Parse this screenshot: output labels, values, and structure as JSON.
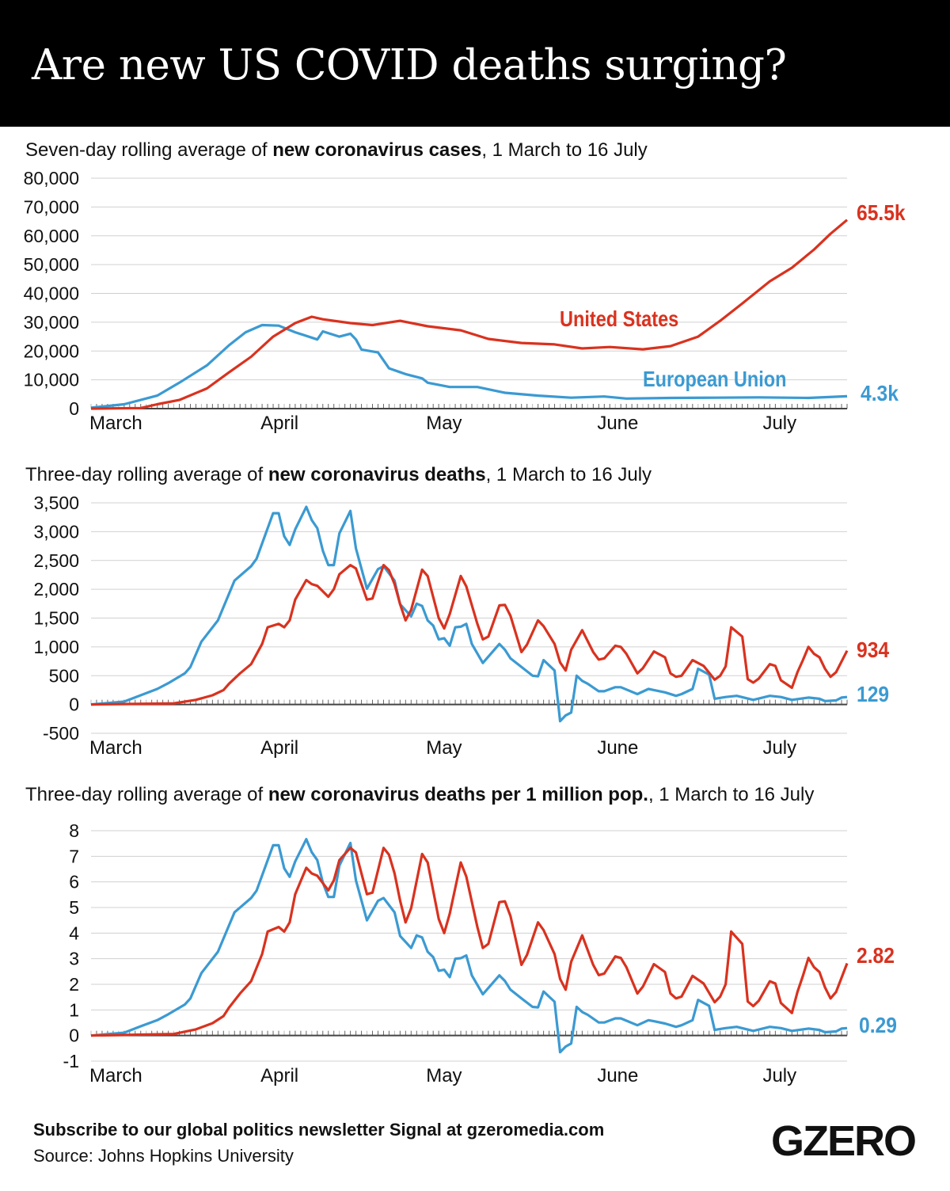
{
  "title": "Are new US COVID deaths surging?",
  "colors": {
    "us": "#d9321f",
    "eu": "#3b9ad2",
    "grid": "#d0d0d0",
    "axis": "#444444"
  },
  "footer": {
    "subscribe": "Subscribe to our global politics newsletter Signal at gzeromedia.com",
    "source": "Source: Johns Hopkins University",
    "logo": "GZERO"
  },
  "chart_data": [
    {
      "type": "line",
      "subtitle_pre": "Seven-day rolling average of ",
      "subtitle_bold": "new coronavirus cases",
      "subtitle_post": ", 1 March to 16 July",
      "x_range": [
        "03-01",
        "07-16"
      ],
      "x_ticks": [
        "March",
        "April",
        "May",
        "June",
        "July"
      ],
      "ylim": [
        0,
        80000
      ],
      "y_ticks": [
        0,
        10000,
        20000,
        30000,
        40000,
        50000,
        60000,
        70000,
        80000
      ],
      "y_tick_labels": [
        "0",
        "10,000",
        "20,000",
        "30,000",
        "40,000",
        "50,000",
        "60,000",
        "70,000",
        "80,000"
      ],
      "grid": true,
      "series": [
        {
          "name": "United States",
          "end_label": "65.5k",
          "color": "#d9321f",
          "dates": [
            "03-01",
            "03-10",
            "03-13",
            "03-17",
            "03-22",
            "03-26",
            "03-30",
            "04-03",
            "04-07",
            "04-10",
            "04-12",
            "04-17",
            "04-21",
            "04-26",
            "05-01",
            "05-07",
            "05-12",
            "05-18",
            "05-24",
            "05-29",
            "06-03",
            "06-09",
            "06-14",
            "06-19",
            "06-23",
            "06-27",
            "07-02",
            "07-06",
            "07-10",
            "07-13",
            "07-16"
          ],
          "values": [
            0,
            200,
            1500,
            3000,
            7000,
            12600,
            18000,
            25000,
            29700,
            31900,
            31000,
            29700,
            29000,
            30500,
            28600,
            27200,
            24200,
            22800,
            22300,
            20900,
            21400,
            20600,
            21700,
            25000,
            30500,
            36500,
            44200,
            48900,
            55200,
            60700,
            65500
          ]
        },
        {
          "name": "European Union",
          "end_label": "4.3k",
          "color": "#3b9ad2",
          "dates": [
            "03-01",
            "03-07",
            "03-13",
            "03-17",
            "03-22",
            "03-26",
            "03-29",
            "04-01",
            "04-04",
            "04-07",
            "04-11",
            "04-12",
            "04-15",
            "04-17",
            "04-18",
            "04-19",
            "04-22",
            "04-24",
            "04-27",
            "04-30",
            "05-01",
            "05-05",
            "05-10",
            "05-15",
            "05-21",
            "05-27",
            "06-02",
            "06-06",
            "06-14",
            "06-22",
            "06-30",
            "07-09",
            "07-16"
          ],
          "values": [
            300,
            1500,
            4500,
            9000,
            15000,
            22000,
            26500,
            29000,
            28800,
            26500,
            24000,
            26800,
            25000,
            26000,
            24000,
            20500,
            19500,
            14000,
            12000,
            10500,
            9000,
            7500,
            7500,
            5500,
            4500,
            3800,
            4200,
            3500,
            3700,
            3800,
            3900,
            3700,
            4300
          ]
        }
      ]
    },
    {
      "type": "line",
      "subtitle_pre": "Three-day rolling average of ",
      "subtitle_bold": "new coronavirus deaths",
      "subtitle_post": ", 1 March to 16 July",
      "x_range": [
        "03-01",
        "07-16"
      ],
      "x_ticks": [
        "March",
        "April",
        "May",
        "June",
        "July"
      ],
      "ylim": [
        -500,
        3500
      ],
      "y_ticks": [
        -500,
        0,
        500,
        1000,
        1500,
        2000,
        2500,
        3000,
        3500
      ],
      "y_tick_labels": [
        "-500",
        "0",
        "500",
        "1,000",
        "1,500",
        "2,000",
        "2,500",
        "3,000",
        "3,500"
      ],
      "grid": true,
      "series": [
        {
          "name": "United States",
          "end_label": "934",
          "color": "#d9321f",
          "dates": [
            "03-01",
            "03-16",
            "03-20",
            "03-23",
            "03-25",
            "03-26",
            "03-28",
            "03-30",
            "04-01",
            "04-02",
            "04-04",
            "04-05",
            "04-06",
            "04-07",
            "04-09",
            "04-10",
            "04-11",
            "04-13",
            "04-14",
            "04-15",
            "04-17",
            "04-18",
            "04-20",
            "04-21",
            "04-23",
            "04-24",
            "04-25",
            "04-26",
            "04-27",
            "04-28",
            "04-30",
            "05-01",
            "05-03",
            "05-04",
            "05-05",
            "05-07",
            "05-08",
            "05-10",
            "05-11",
            "05-12",
            "05-14",
            "05-15",
            "05-16",
            "05-18",
            "05-19",
            "05-21",
            "05-22",
            "05-24",
            "05-25",
            "05-26",
            "05-27",
            "05-29",
            "05-31",
            "06-01",
            "06-02",
            "06-04",
            "06-05",
            "06-06",
            "06-08",
            "06-09",
            "06-11",
            "06-13",
            "06-14",
            "06-15",
            "06-16",
            "06-18",
            "06-20",
            "06-22",
            "06-23",
            "06-24",
            "06-25",
            "06-27",
            "06-28",
            "06-29",
            "06-30",
            "07-02",
            "07-03",
            "07-04",
            "07-06",
            "07-07",
            "07-08",
            "07-09",
            "07-10",
            "07-11",
            "07-12",
            "07-13",
            "07-14",
            "07-16"
          ],
          "values": [
            0,
            20,
            80,
            160,
            250,
            360,
            540,
            700,
            1050,
            1340,
            1400,
            1340,
            1460,
            1820,
            2160,
            2090,
            2060,
            1870,
            2000,
            2260,
            2420,
            2360,
            1820,
            1840,
            2420,
            2330,
            2090,
            1740,
            1460,
            1640,
            2340,
            2230,
            1500,
            1320,
            1570,
            2230,
            2050,
            1400,
            1130,
            1180,
            1720,
            1730,
            1540,
            910,
            1040,
            1460,
            1360,
            1050,
            730,
            590,
            950,
            1290,
            910,
            780,
            800,
            1020,
            1000,
            880,
            540,
            630,
            920,
            820,
            540,
            480,
            500,
            770,
            670,
            430,
            500,
            660,
            1340,
            1180,
            440,
            380,
            450,
            700,
            670,
            420,
            290,
            560,
            770,
            1000,
            880,
            820,
            620,
            480,
            560,
            934
          ]
        },
        {
          "name": "European Union",
          "end_label": "129",
          "color": "#3b9ad2",
          "dates": [
            "03-01",
            "03-07",
            "03-10",
            "03-13",
            "03-15",
            "03-18",
            "03-19",
            "03-21",
            "03-24",
            "03-27",
            "03-30",
            "03-31",
            "04-03",
            "04-04",
            "04-05",
            "04-06",
            "04-07",
            "04-09",
            "04-10",
            "04-11",
            "04-12",
            "04-13",
            "04-14",
            "04-15",
            "04-17",
            "04-18",
            "04-20",
            "04-22",
            "04-23",
            "04-25",
            "04-26",
            "04-28",
            "04-29",
            "04-30",
            "05-01",
            "05-02",
            "05-03",
            "05-04",
            "05-05",
            "05-06",
            "05-07",
            "05-08",
            "05-09",
            "05-11",
            "05-14",
            "05-15",
            "05-16",
            "05-18",
            "05-20",
            "05-21",
            "05-22",
            "05-24",
            "05-25",
            "05-26",
            "05-27",
            "05-28",
            "05-29",
            "05-30",
            "06-01",
            "06-02",
            "06-04",
            "06-05",
            "06-08",
            "06-10",
            "06-11",
            "06-13",
            "06-15",
            "06-16",
            "06-18",
            "06-19",
            "06-21",
            "06-22",
            "06-24",
            "06-26",
            "06-29",
            "07-02",
            "07-04",
            "07-06",
            "07-09",
            "07-11",
            "07-12",
            "07-14",
            "07-15",
            "07-16"
          ],
          "values": [
            0,
            50,
            160,
            270,
            370,
            540,
            650,
            1090,
            1460,
            2150,
            2400,
            2530,
            3320,
            3320,
            2920,
            2770,
            3040,
            3430,
            3200,
            3060,
            2670,
            2420,
            2420,
            2970,
            3360,
            2710,
            2010,
            2350,
            2400,
            2150,
            1740,
            1530,
            1750,
            1710,
            1460,
            1370,
            1130,
            1150,
            1020,
            1340,
            1350,
            1400,
            1050,
            720,
            1050,
            950,
            800,
            650,
            500,
            490,
            770,
            590,
            -290,
            -190,
            -140,
            500,
            410,
            360,
            230,
            230,
            300,
            300,
            180,
            270,
            250,
            210,
            150,
            180,
            270,
            620,
            520,
            100,
            130,
            150,
            80,
            150,
            130,
            80,
            120,
            100,
            60,
            70,
            120,
            129
          ]
        }
      ]
    },
    {
      "type": "line",
      "subtitle_pre": "Three-day rolling average of ",
      "subtitle_bold": "new coronavirus deaths per 1 million pop.",
      "subtitle_post": ", 1 March to 16 July",
      "x_range": [
        "03-01",
        "07-16"
      ],
      "x_ticks": [
        "March",
        "April",
        "May",
        "June",
        "July"
      ],
      "ylim": [
        -1,
        8
      ],
      "y_ticks": [
        -1,
        0,
        1,
        2,
        3,
        4,
        5,
        6,
        7,
        8
      ],
      "y_tick_labels": [
        "-1",
        "0",
        "1",
        "2",
        "3",
        "4",
        "5",
        "6",
        "7",
        "8"
      ],
      "grid": true,
      "series": [
        {
          "name": "United States",
          "end_label": "2.82",
          "color": "#d9321f",
          "dates": [
            "03-01",
            "03-16",
            "03-20",
            "03-23",
            "03-25",
            "03-26",
            "03-28",
            "03-30",
            "04-01",
            "04-02",
            "04-04",
            "04-05",
            "04-06",
            "04-07",
            "04-09",
            "04-10",
            "04-11",
            "04-13",
            "04-14",
            "04-15",
            "04-17",
            "04-18",
            "04-20",
            "04-21",
            "04-23",
            "04-24",
            "04-25",
            "04-26",
            "04-27",
            "04-28",
            "04-30",
            "05-01",
            "05-03",
            "05-04",
            "05-05",
            "05-07",
            "05-08",
            "05-10",
            "05-11",
            "05-12",
            "05-14",
            "05-15",
            "05-16",
            "05-18",
            "05-19",
            "05-21",
            "05-22",
            "05-24",
            "05-25",
            "05-26",
            "05-27",
            "05-29",
            "05-31",
            "06-01",
            "06-02",
            "06-04",
            "06-05",
            "06-06",
            "06-08",
            "06-09",
            "06-11",
            "06-13",
            "06-14",
            "06-15",
            "06-16",
            "06-18",
            "06-20",
            "06-22",
            "06-23",
            "06-24",
            "06-25",
            "06-27",
            "06-28",
            "06-29",
            "06-30",
            "07-02",
            "07-03",
            "07-04",
            "07-06",
            "07-07",
            "07-08",
            "07-09",
            "07-10",
            "07-11",
            "07-12",
            "07-13",
            "07-14",
            "07-16"
          ],
          "values": [
            0,
            0.06,
            0.24,
            0.48,
            0.76,
            1.09,
            1.64,
            2.12,
            3.18,
            4.06,
            4.24,
            4.06,
            4.42,
            5.52,
            6.55,
            6.33,
            6.24,
            5.67,
            6.06,
            6.85,
            7.33,
            7.15,
            5.52,
            5.58,
            7.33,
            7.06,
            6.33,
            5.27,
            4.42,
            4.97,
            7.09,
            6.76,
            4.55,
            4,
            4.76,
            6.76,
            6.21,
            4.24,
            3.42,
            3.58,
            5.21,
            5.24,
            4.67,
            2.76,
            3.15,
            4.42,
            4.12,
            3.18,
            2.21,
            1.79,
            2.88,
            3.91,
            2.76,
            2.36,
            2.42,
            3.09,
            3.03,
            2.67,
            1.64,
            1.91,
            2.79,
            2.48,
            1.64,
            1.45,
            1.52,
            2.33,
            2.03,
            1.3,
            1.52,
            2,
            4.06,
            3.58,
            1.33,
            1.15,
            1.36,
            2.12,
            2.03,
            1.27,
            0.88,
            1.7,
            2.33,
            3.03,
            2.67,
            2.48,
            1.88,
            1.45,
            1.7,
            2.82
          ]
        },
        {
          "name": "European Union",
          "end_label": "0.29",
          "color": "#3b9ad2",
          "dates": [
            "03-01",
            "03-07",
            "03-10",
            "03-13",
            "03-15",
            "03-18",
            "03-19",
            "03-21",
            "03-24",
            "03-27",
            "03-30",
            "03-31",
            "04-03",
            "04-04",
            "04-05",
            "04-06",
            "04-07",
            "04-09",
            "04-10",
            "04-11",
            "04-12",
            "04-13",
            "04-14",
            "04-15",
            "04-17",
            "04-18",
            "04-20",
            "04-22",
            "04-23",
            "04-25",
            "04-26",
            "04-28",
            "04-29",
            "04-30",
            "05-01",
            "05-02",
            "05-03",
            "05-04",
            "05-05",
            "05-06",
            "05-07",
            "05-08",
            "05-09",
            "05-11",
            "05-14",
            "05-15",
            "05-16",
            "05-18",
            "05-20",
            "05-21",
            "05-22",
            "05-24",
            "05-25",
            "05-26",
            "05-27",
            "05-28",
            "05-29",
            "05-30",
            "06-01",
            "06-02",
            "06-04",
            "06-05",
            "06-08",
            "06-10",
            "06-11",
            "06-13",
            "06-15",
            "06-16",
            "06-18",
            "06-19",
            "06-21",
            "06-22",
            "06-24",
            "06-26",
            "06-29",
            "07-02",
            "07-04",
            "07-06",
            "07-09",
            "07-11",
            "07-12",
            "07-14",
            "07-15",
            "07-16"
          ],
          "values": [
            0,
            0.11,
            0.36,
            0.6,
            0.83,
            1.21,
            1.45,
            2.44,
            3.27,
            4.81,
            5.37,
            5.66,
            7.43,
            7.43,
            6.53,
            6.2,
            6.8,
            7.67,
            7.16,
            6.85,
            5.97,
            5.41,
            5.41,
            6.64,
            7.52,
            6.06,
            4.5,
            5.26,
            5.37,
            4.81,
            3.89,
            3.42,
            3.91,
            3.83,
            3.27,
            3.06,
            2.53,
            2.57,
            2.28,
            3,
            3.02,
            3.13,
            2.35,
            1.61,
            2.35,
            2.13,
            1.79,
            1.45,
            1.12,
            1.1,
            1.72,
            1.32,
            -0.65,
            -0.43,
            -0.31,
            1.12,
            0.92,
            0.81,
            0.51,
            0.51,
            0.67,
            0.67,
            0.4,
            0.6,
            0.56,
            0.47,
            0.34,
            0.4,
            0.6,
            1.39,
            1.16,
            0.22,
            0.29,
            0.34,
            0.18,
            0.34,
            0.29,
            0.18,
            0.27,
            0.22,
            0.13,
            0.16,
            0.27,
            0.29
          ]
        }
      ]
    }
  ]
}
